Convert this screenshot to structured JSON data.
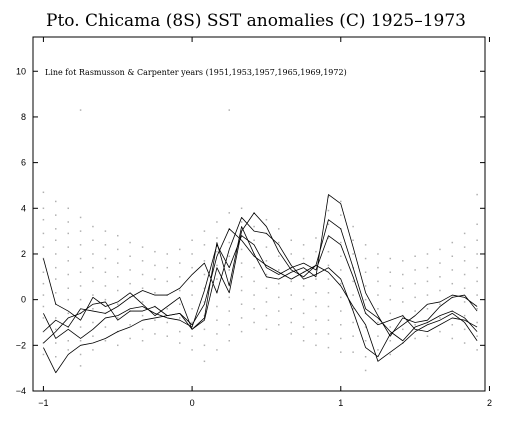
{
  "chart_data": {
    "type": "line",
    "title": "Pto. Chicama (8S) SST anomalies (C) 1925–1973",
    "annotation": "Line fot Rasmusson & Carpenter years (1951,1953,1957,1965,1969,1972)",
    "xlabel": "",
    "ylabel": "",
    "xlim": [
      -1.07,
      1.97
    ],
    "ylim": [
      -4,
      11.5
    ],
    "xticks": [
      -1,
      0,
      1,
      2
    ],
    "yticks": [
      -4,
      -2,
      0,
      2,
      4,
      6,
      8,
      10
    ],
    "grid": false,
    "legend": "none",
    "line_color": "#000000",
    "scatter_color": "#b0b0b0",
    "x": [
      -1.0,
      -0.917,
      -0.833,
      -0.75,
      -0.667,
      -0.583,
      -0.5,
      -0.417,
      -0.333,
      -0.25,
      -0.167,
      -0.083,
      0.0,
      0.083,
      0.167,
      0.25,
      0.333,
      0.417,
      0.5,
      0.583,
      0.667,
      0.75,
      0.833,
      0.917,
      1.0,
      1.083,
      1.167,
      1.25,
      1.333,
      1.417,
      1.5,
      1.583,
      1.667,
      1.75,
      1.833,
      1.917
    ],
    "series": [
      {
        "values": [
          1.8,
          -0.2,
          -0.5,
          -0.9,
          0.1,
          -0.3,
          -0.1,
          0.3,
          -0.2,
          -0.7,
          -0.3,
          0.1,
          -1.3,
          -0.8,
          2.5,
          0.6,
          3.2,
          2.0,
          1.0,
          0.9,
          1.2,
          1.4,
          1.0,
          4.6,
          4.2,
          2.3,
          0.3,
          -0.7,
          -1.6,
          -0.8,
          -1.0,
          -0.9,
          -0.3,
          0.1,
          0.2,
          -0.5
        ]
      },
      {
        "values": [
          -0.6,
          -1.7,
          -1.3,
          -1.7,
          -1.3,
          -0.8,
          -0.7,
          -0.4,
          -0.3,
          -0.6,
          -0.8,
          -0.9,
          -1.2,
          0.4,
          2.4,
          1.4,
          2.8,
          2.4,
          1.4,
          1.1,
          1.4,
          1.6,
          1.3,
          2.8,
          2.4,
          1.0,
          -0.6,
          -1.1,
          -0.9,
          -0.7,
          -1.3,
          -1.4,
          -1.1,
          -0.8,
          -0.9,
          -1.2
        ]
      },
      {
        "values": [
          -1.9,
          -1.4,
          -0.8,
          -0.6,
          -0.2,
          -0.1,
          -0.9,
          -0.5,
          -0.5,
          -0.3,
          -0.7,
          -0.6,
          -1.1,
          -0.2,
          1.9,
          3.1,
          2.6,
          1.9,
          1.5,
          1.2,
          0.9,
          1.2,
          1.5,
          3.5,
          3.1,
          1.4,
          -0.4,
          -0.8,
          -1.4,
          -1.8,
          -1.2,
          -1.0,
          -0.7,
          -0.5,
          -0.8,
          -1.4
        ]
      },
      {
        "values": [
          -1.4,
          -0.9,
          -1.2,
          -0.4,
          -0.5,
          -0.6,
          -0.3,
          0.1,
          0.4,
          0.2,
          0.2,
          0.5,
          1.1,
          1.6,
          0.3,
          2.2,
          3.6,
          3.0,
          2.9,
          2.4,
          1.5,
          0.9,
          1.1,
          1.4,
          0.9,
          -0.5,
          -2.1,
          -2.5,
          -1.5,
          -1.1,
          -0.7,
          -0.2,
          -0.1,
          0.2,
          0.1,
          -0.3
        ]
      },
      {
        "values": [
          -2.1,
          -3.2,
          -2.4,
          -2.0,
          -1.9,
          -1.7,
          -1.4,
          -1.2,
          -0.9,
          -0.8,
          -0.7,
          -0.6,
          -1.3,
          -0.9,
          1.4,
          0.3,
          3.0,
          3.8,
          3.2,
          2.1,
          1.3,
          1.0,
          1.5,
          1.2,
          0.6,
          -0.3,
          -1.1,
          -2.7,
          -2.3,
          -1.9,
          -1.4,
          -1.1,
          -0.9,
          -0.6,
          -1.0,
          -1.8
        ]
      }
    ],
    "scatter": [
      {
        "x": -1.0,
        "y": [
          4.7,
          4.0,
          3.5,
          2.9,
          2.3,
          1.8,
          1.2,
          0.7,
          0.2,
          -0.3,
          -0.8,
          -1.4,
          -1.9,
          -2.4
        ]
      },
      {
        "x": -0.917,
        "y": [
          4.3,
          3.7,
          3.1,
          2.6,
          2.0,
          1.4,
          0.9,
          0.3,
          -0.2,
          -0.8,
          -1.3,
          -1.9,
          -2.5
        ]
      },
      {
        "x": -0.833,
        "y": [
          4.0,
          3.4,
          2.9,
          2.3,
          1.7,
          1.1,
          0.5,
          0.0,
          -0.6,
          -1.2,
          -1.8,
          -2.2
        ]
      },
      {
        "x": -0.75,
        "y": [
          8.3,
          3.6,
          3.0,
          2.4,
          1.8,
          1.2,
          0.6,
          0.0,
          -0.6,
          -1.2,
          -1.8,
          -2.4,
          -2.9
        ]
      },
      {
        "x": -0.667,
        "y": [
          3.2,
          2.6,
          2.0,
          1.4,
          0.8,
          0.2,
          -0.4,
          -1.0,
          -1.6,
          -2.2
        ]
      },
      {
        "x": -0.583,
        "y": [
          3.0,
          2.4,
          1.8,
          1.2,
          0.6,
          0.0,
          -0.6,
          -1.2,
          -1.8
        ]
      },
      {
        "x": -0.5,
        "y": [
          2.8,
          2.2,
          1.6,
          1.0,
          0.4,
          -0.2,
          -0.8,
          -1.4,
          -2.0
        ]
      },
      {
        "x": -0.417,
        "y": [
          2.5,
          1.9,
          1.3,
          0.7,
          0.1,
          -0.5,
          -1.1,
          -1.7
        ]
      },
      {
        "x": -0.333,
        "y": [
          2.3,
          1.7,
          1.1,
          0.5,
          -0.1,
          -0.7,
          -1.3,
          -1.8
        ]
      },
      {
        "x": -0.25,
        "y": [
          2.1,
          1.5,
          0.9,
          0.3,
          -0.3,
          -0.9,
          -1.5
        ]
      },
      {
        "x": -0.167,
        "y": [
          2.0,
          1.4,
          0.8,
          0.2,
          -0.4,
          -1.0,
          -1.6
        ]
      },
      {
        "x": -0.083,
        "y": [
          2.2,
          1.6,
          1.0,
          0.4,
          -0.2,
          -0.8,
          -1.4,
          -1.9
        ]
      },
      {
        "x": 0.0,
        "y": [
          2.6,
          2.0,
          1.4,
          0.8,
          0.2,
          -0.4,
          -1.0,
          -1.6,
          -2.2
        ]
      },
      {
        "x": 0.083,
        "y": [
          3.0,
          2.4,
          1.7,
          1.1,
          0.5,
          -0.1,
          -0.7,
          -1.3,
          -2.0,
          -2.7
        ]
      },
      {
        "x": 0.167,
        "y": [
          3.4,
          2.7,
          2.1,
          1.5,
          0.9,
          0.3,
          -0.3,
          -0.9,
          -1.5,
          -2.2
        ]
      },
      {
        "x": 0.25,
        "y": [
          8.3,
          3.8,
          3.1,
          2.5,
          1.9,
          1.3,
          0.7,
          0.1,
          -0.5,
          -1.1,
          -1.8
        ]
      },
      {
        "x": 0.333,
        "y": [
          4.0,
          3.4,
          2.8,
          2.2,
          1.6,
          1.0,
          0.4,
          -0.2,
          -0.8,
          -1.4
        ]
      },
      {
        "x": 0.417,
        "y": [
          3.8,
          3.2,
          2.6,
          2.0,
          1.4,
          0.8,
          0.2,
          -0.4,
          -1.0
        ]
      },
      {
        "x": 0.5,
        "y": [
          3.5,
          2.9,
          2.3,
          1.7,
          1.1,
          0.5,
          -0.1,
          -0.7,
          -1.3
        ]
      },
      {
        "x": 0.583,
        "y": [
          3.1,
          2.5,
          1.9,
          1.3,
          0.7,
          0.1,
          -0.5,
          -1.1
        ]
      },
      {
        "x": 0.667,
        "y": [
          2.6,
          2.0,
          1.4,
          0.8,
          0.2,
          -0.4,
          -1.0,
          -1.5
        ]
      },
      {
        "x": 0.75,
        "y": [
          2.4,
          1.8,
          1.2,
          0.6,
          0.0,
          -0.6,
          -1.2,
          -1.8
        ]
      },
      {
        "x": 0.833,
        "y": [
          2.7,
          2.1,
          1.5,
          0.9,
          0.3,
          -0.3,
          -0.9,
          -1.5,
          -2.0
        ]
      },
      {
        "x": 0.917,
        "y": [
          4.5,
          3.9,
          3.3,
          2.7,
          2.1,
          1.5,
          0.9,
          0.3,
          -0.3,
          -0.9,
          -1.5,
          -2.1
        ]
      },
      {
        "x": 1.0,
        "y": [
          4.3,
          3.7,
          3.1,
          2.5,
          1.9,
          1.3,
          0.7,
          0.1,
          -0.5,
          -1.1,
          -1.7,
          -2.3
        ]
      },
      {
        "x": 1.083,
        "y": [
          3.2,
          2.6,
          2.0,
          1.4,
          0.8,
          0.2,
          -0.4,
          -1.0,
          -1.6,
          -2.3
        ]
      },
      {
        "x": 1.167,
        "y": [
          2.4,
          1.8,
          1.2,
          0.6,
          0.0,
          -0.6,
          -1.2,
          -1.8,
          -2.5,
          -3.1
        ]
      },
      {
        "x": 1.25,
        "y": [
          2.0,
          1.4,
          0.8,
          0.2,
          -0.4,
          -1.0,
          -1.6,
          -2.2
        ]
      },
      {
        "x": 1.333,
        "y": [
          1.8,
          1.2,
          0.6,
          0.0,
          -0.6,
          -1.2,
          -1.8,
          -2.4
        ]
      },
      {
        "x": 1.417,
        "y": [
          1.7,
          1.1,
          0.5,
          -0.1,
          -0.7,
          -1.3,
          -1.9
        ]
      },
      {
        "x": 1.5,
        "y": [
          1.9,
          1.3,
          0.7,
          0.1,
          -0.5,
          -1.1,
          -1.7
        ]
      },
      {
        "x": 1.583,
        "y": [
          2.0,
          1.4,
          0.8,
          0.2,
          -0.4,
          -1.0,
          -1.6
        ]
      },
      {
        "x": 1.667,
        "y": [
          2.2,
          1.6,
          1.0,
          0.4,
          -0.2,
          -0.8,
          -1.4
        ]
      },
      {
        "x": 1.75,
        "y": [
          2.5,
          1.9,
          1.3,
          0.7,
          0.1,
          -0.5,
          -1.1,
          -1.7
        ]
      },
      {
        "x": 1.833,
        "y": [
          2.9,
          2.3,
          1.7,
          1.1,
          0.5,
          -0.1,
          -0.7,
          -1.3,
          -1.9
        ]
      },
      {
        "x": 1.917,
        "y": [
          4.6,
          3.3,
          2.6,
          2.0,
          1.4,
          0.8,
          0.2,
          -0.4,
          -1.0,
          -1.6,
          -2.2
        ]
      }
    ]
  }
}
